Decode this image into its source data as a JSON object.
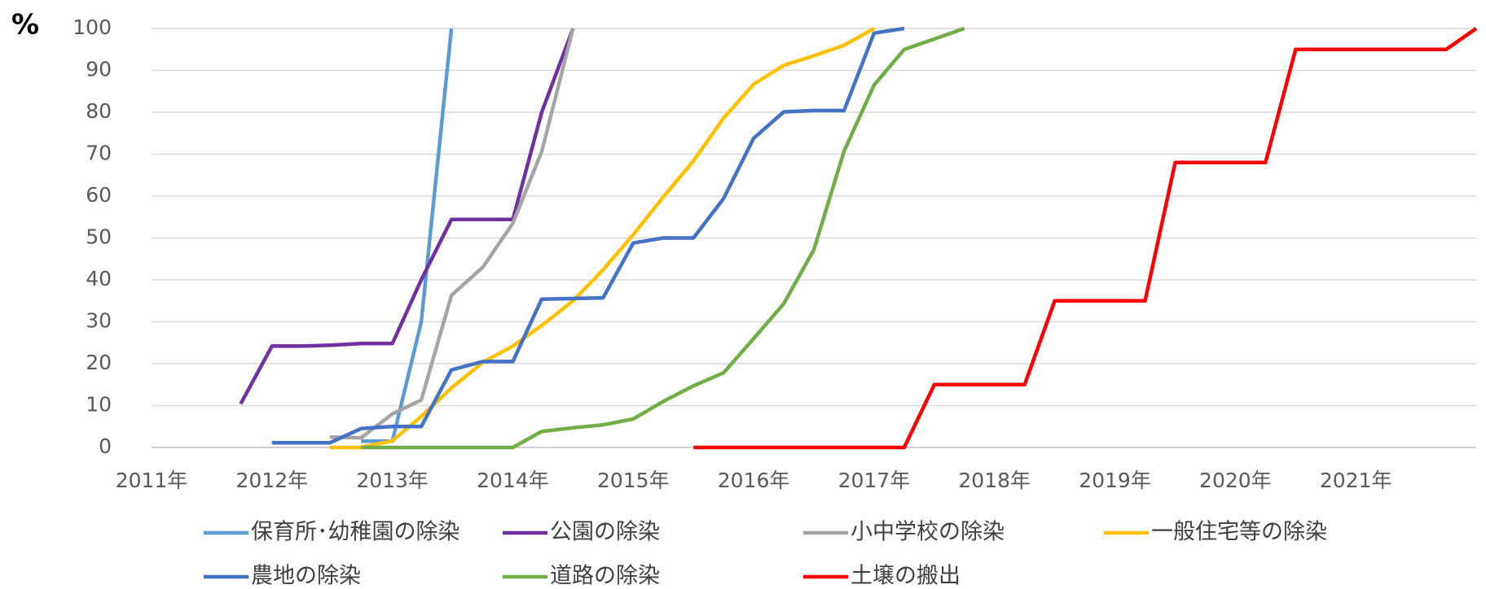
{
  "chart_data": {
    "type": "line",
    "y_label": "%",
    "xlim": [
      2011,
      2022
    ],
    "xticks": [
      {
        "value": 2011,
        "label": "2011年"
      },
      {
        "value": 2012,
        "label": "2012年"
      },
      {
        "value": 2013,
        "label": "2013年"
      },
      {
        "value": 2014,
        "label": "2014年"
      },
      {
        "value": 2015,
        "label": "2015年"
      },
      {
        "value": 2016,
        "label": "2016年"
      },
      {
        "value": 2017,
        "label": "2017年"
      },
      {
        "value": 2018,
        "label": "2018年"
      },
      {
        "value": 2019,
        "label": "2019年"
      },
      {
        "value": 2020,
        "label": "2020年"
      },
      {
        "value": 2021,
        "label": "2021年"
      }
    ],
    "ylim": [
      0,
      100
    ],
    "yticks": [
      0,
      10,
      20,
      30,
      40,
      50,
      60,
      70,
      80,
      90,
      100
    ],
    "grid": true,
    "legend": "bottom",
    "series": [
      {
        "name": "保育所･幼稚園の除染",
        "color": "#5B9BD5",
        "x": [
          2012.74,
          2013.0,
          2013.24,
          2013.49
        ],
        "values": [
          1.5,
          1.5,
          30,
          100
        ]
      },
      {
        "name": "公園の除染",
        "color": "#7030A0",
        "x": [
          2011.74,
          2012.0,
          2012.25,
          2012.5,
          2012.74,
          2013.0,
          2013.24,
          2013.49,
          2013.75,
          2014.0,
          2014.24,
          2014.5
        ],
        "values": [
          10.4,
          24.2,
          24.2,
          24.4,
          24.8,
          24.8,
          40,
          54.4,
          54.4,
          54.4,
          80,
          100
        ]
      },
      {
        "name": "小中学校の除染",
        "color": "#A5A5A5",
        "x": [
          2012.48,
          2012.74,
          2013.0,
          2013.24,
          2013.49,
          2013.75,
          2014.0,
          2014.24,
          2014.5
        ],
        "values": [
          2.5,
          2.3,
          8,
          11.3,
          36.3,
          43,
          53.5,
          70.6,
          100
        ]
      },
      {
        "name": "一般住宅等の除染",
        "color": "#FFC000",
        "x": [
          2012.48,
          2012.74,
          2013.0,
          2013.24,
          2013.49,
          2013.75,
          2014.0,
          2014.24,
          2014.5,
          2014.75,
          2015.0,
          2015.25,
          2015.5,
          2015.75,
          2016.0,
          2016.25,
          2016.5,
          2016.75,
          2017.0
        ],
        "values": [
          0,
          0,
          1.6,
          7.4,
          14.2,
          20.3,
          24.2,
          29.1,
          35,
          42.4,
          50.8,
          59.8,
          68.4,
          78.6,
          86.7,
          91.2,
          93.5,
          96,
          100
        ]
      },
      {
        "name": "農地の除染",
        "color": "#4472C4",
        "x": [
          2012.0,
          2012.48,
          2012.74,
          2013.0,
          2013.24,
          2013.49,
          2013.75,
          2014.0,
          2014.24,
          2014.75,
          2015.0,
          2015.25,
          2015.5,
          2015.75,
          2016.0,
          2016.25,
          2016.5,
          2016.75,
          2017.0,
          2017.25
        ],
        "values": [
          1.1,
          1.1,
          4.5,
          5,
          5,
          18.5,
          20.5,
          20.5,
          35.4,
          35.7,
          48.8,
          50,
          50,
          59.4,
          73.8,
          80.1,
          80.4,
          80.4,
          98.9,
          100
        ]
      },
      {
        "name": "道路の除染",
        "color": "#70AD47",
        "x": [
          2012.74,
          2014.0,
          2014.24,
          2014.5,
          2014.75,
          2015.0,
          2015.25,
          2015.5,
          2015.75,
          2016.0,
          2016.25,
          2016.5,
          2016.75,
          2017.0,
          2017.25,
          2017.75
        ],
        "values": [
          0,
          0,
          3.8,
          4.7,
          5.4,
          6.8,
          11,
          14.7,
          17.8,
          26,
          34.3,
          47.2,
          70.7,
          86.5,
          95,
          100
        ]
      },
      {
        "name": "土壌の搬出",
        "color": "#FF0000",
        "x": [
          2015.5,
          2017.25,
          2017.5,
          2018.25,
          2018.5,
          2019.25,
          2019.5,
          2020.25,
          2020.5,
          2021.75,
          2022.0
        ],
        "values": [
          0,
          0,
          15,
          15,
          35,
          35,
          68,
          68,
          95,
          95,
          100
        ]
      }
    ]
  }
}
